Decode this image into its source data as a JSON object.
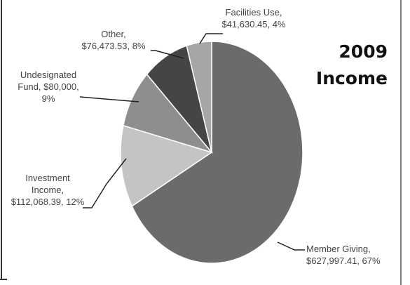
{
  "chart_data": {
    "type": "pie",
    "title": "2009 Income",
    "title_lines": [
      "2009",
      "Income"
    ],
    "slices": [
      {
        "name": "Member Giving",
        "value": 627997.41,
        "percent": 67,
        "color": "#6b6b6b",
        "label_lines": [
          "Member Giving,",
          "$627,997.41, 67%"
        ]
      },
      {
        "name": "Investment Income",
        "value": 112068.39,
        "percent": 12,
        "color": "#c4c4c4",
        "label_lines": [
          "Investment",
          "Income,",
          "$112,068.39, 12%"
        ]
      },
      {
        "name": "Undesignated Fund",
        "value": 80000,
        "percent": 9,
        "color": "#8e8e8e",
        "label_lines": [
          "Undesignated",
          "Fund, $80,000,",
          "9%"
        ]
      },
      {
        "name": "Other",
        "value": 76473.53,
        "percent": 8,
        "color": "#454545",
        "label_lines": [
          "Other,",
          "$76,473.53, 8%"
        ]
      },
      {
        "name": "Facilities Use",
        "value": 41630.45,
        "percent": 4,
        "color": "#a6a6a6",
        "label_lines": [
          "Facilities Use,",
          "$41,630.45, 4%"
        ]
      }
    ],
    "start_angle_deg": 0,
    "direction": "clockwise",
    "legend": "none",
    "grid": false
  }
}
